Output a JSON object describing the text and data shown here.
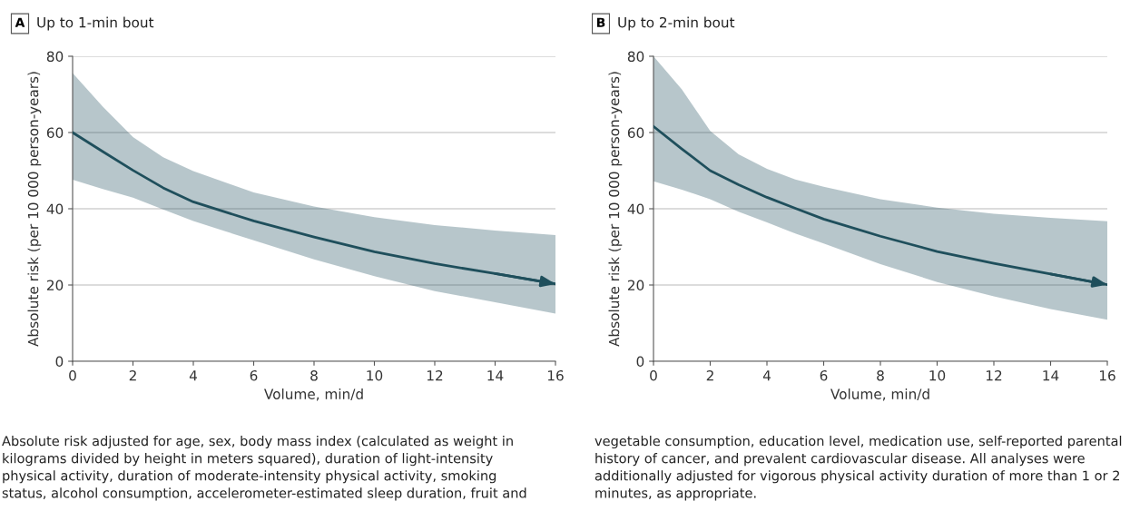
{
  "chart_data": [
    {
      "type": "line",
      "title": "Up to 1-min bout",
      "xlabel": "Volume, min/d",
      "ylabel": "Absolute risk (per 10 000 person-years)",
      "xlim": [
        0,
        16
      ],
      "xticks": [
        0,
        2,
        4,
        6,
        8,
        10,
        12,
        14,
        16
      ],
      "ylim": [
        0,
        80
      ],
      "yticks": [
        0,
        20,
        40,
        60,
        80
      ],
      "grid": "y",
      "marker": "none",
      "line_style": "solid",
      "annotations": [
        "A",
        "Absolute risk adjusted for age, sex, body mass index (calculated as weight in\nkilograms divided by height in meters squared), duration of light-intensity\nphysical activity, duration of moderate-intensity physical activity, smoking\nstatus, alcohol consumption, accelerometer-estimated sleep duration, fruit and"
      ],
      "series": [
        {
          "color": "#1f4f5c",
          "x": [
            0,
            1,
            2,
            3,
            4,
            6,
            8,
            10,
            12,
            14,
            16
          ],
          "values": [
            60,
            55,
            50.1,
            45.5,
            41.8,
            36.8,
            32.6,
            28.7,
            25.6,
            23.0,
            20.3
          ],
          "upper": [
            75.6,
            66.8,
            58.8,
            53.5,
            49.9,
            44.3,
            40.6,
            37.8,
            35.7,
            34.3,
            33.1
          ],
          "lower": [
            47.6,
            45.2,
            42.9,
            39.8,
            36.8,
            31.7,
            26.7,
            22.3,
            18.4,
            15.5,
            12.5
          ]
        }
      ]
    },
    {
      "type": "line",
      "title": "Up to 2-min bout",
      "xlabel": "Volume, min/d",
      "ylabel": "Absolute risk (per 10 000 person-years)",
      "xlim": [
        0,
        16
      ],
      "xticks": [
        0,
        2,
        4,
        6,
        8,
        10,
        12,
        14,
        16
      ],
      "ylim": [
        0,
        80
      ],
      "yticks": [
        0,
        20,
        40,
        60,
        80
      ],
      "grid": "y",
      "marker": "none",
      "line_style": "solid",
      "annotations": [
        "B",
        "vegetable consumption, education level, medication use, self-reported parental\nhistory of cancer, and prevalent cardiovascular disease. All analyses were\nadditionally adjusted for vigorous physical activity duration of more than 1 or 2\nminutes, as appropriate."
      ],
      "series": [
        {
          "color": "#1f4f5c",
          "x": [
            0,
            1,
            2,
            3,
            4,
            5,
            6,
            8,
            10,
            12,
            14,
            16
          ],
          "values": [
            61.6,
            55.7,
            50.0,
            46.3,
            43.0,
            40.1,
            37.3,
            32.8,
            28.8,
            25.7,
            22.9,
            20.1
          ],
          "upper": [
            80,
            71.3,
            60.4,
            54.3,
            50.5,
            47.7,
            45.8,
            42.5,
            40.3,
            38.7,
            37.6,
            36.7
          ],
          "lower": [
            47.2,
            45.0,
            42.5,
            39.2,
            36.4,
            33.5,
            30.9,
            25.5,
            20.8,
            17.0,
            13.7,
            10.9
          ]
        }
      ]
    }
  ]
}
